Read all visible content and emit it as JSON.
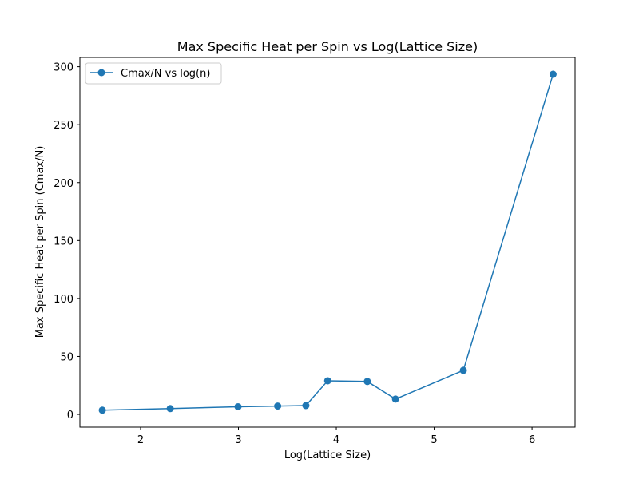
{
  "chart_data": {
    "type": "line",
    "title": "Max Specific Heat per Spin vs Log(Lattice Size)",
    "xlabel": "Log(Lattice Size)",
    "ylabel": "Max Specific Heat per Spin (Cmax/N)",
    "xlim": [
      1.38,
      6.44
    ],
    "ylim": [
      -11,
      308
    ],
    "xticks": [
      2,
      3,
      4,
      5,
      6
    ],
    "yticks": [
      0,
      50,
      100,
      150,
      200,
      250,
      300
    ],
    "grid": false,
    "legend_position": "upper-left",
    "series": [
      {
        "name": "Cmax/N vs log(n)",
        "color": "#1f77b4",
        "marker": "circle",
        "x": [
          1.609,
          2.303,
          2.996,
          3.401,
          3.689,
          3.912,
          4.317,
          4.605,
          5.298,
          6.215
        ],
        "y": [
          3.6,
          5.0,
          6.6,
          7.2,
          7.6,
          29.0,
          28.4,
          13.2,
          38.0,
          293.5
        ]
      }
    ]
  }
}
